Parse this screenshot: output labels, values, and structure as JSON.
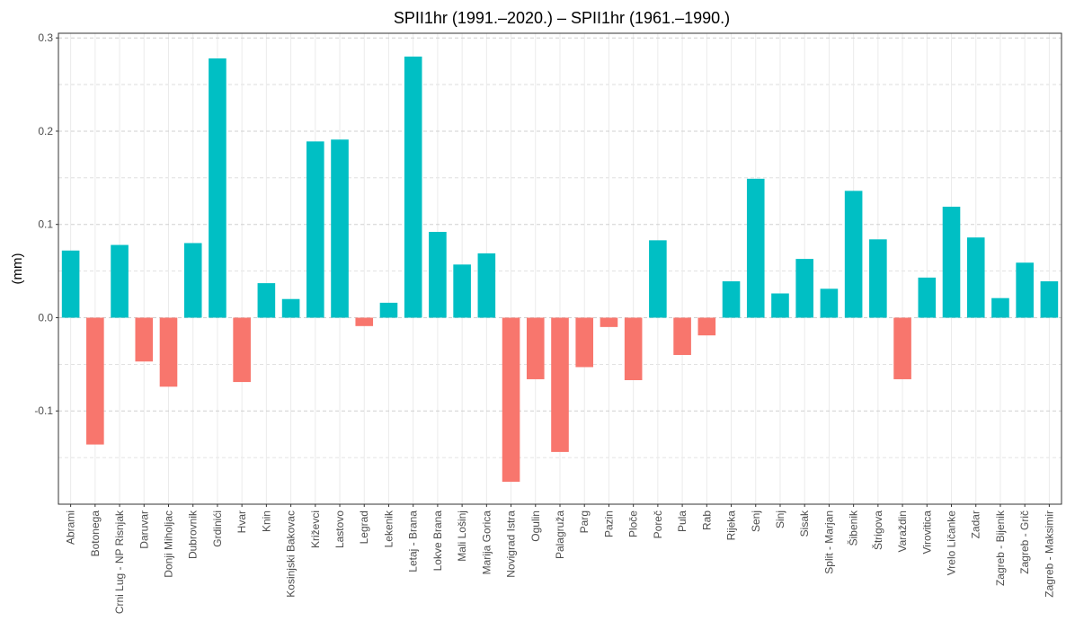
{
  "chart_data": {
    "type": "bar",
    "title": "SPII1hr (1991.–2020.) – SPII1hr (1961.–1990.)",
    "y_label": "(mm)",
    "categories": [
      "Abrami",
      "Botonega",
      "Crni Lug - NP Risnjak",
      "Daruvar",
      "Donji Miholjac",
      "Dubrovnik",
      "Grdinići",
      "Hvar",
      "Knin",
      "Kosinjski Bakovac",
      "Križevci",
      "Lastovo",
      "Legrad",
      "Lekenik",
      "Letaj - Brana",
      "Lokve Brana",
      "Mali Lošinj",
      "Marija Gorica",
      "Novigrad Istra",
      "Ogulin",
      "Palagruža",
      "Parg",
      "Pazin",
      "Ploče",
      "Poreč",
      "Pula",
      "Rab",
      "Rijeka",
      "Senj",
      "Sinj",
      "Sisak",
      "Split - Marjan",
      "Šibenik",
      "Štrigova",
      "Varaždin",
      "Virovitica",
      "Vrelo Ličanke",
      "Zadar",
      "Zagreb - Bijenik",
      "Zagreb - Grič",
      "Zagreb - Maksimir"
    ],
    "values": [
      0.072,
      -0.136,
      0.078,
      -0.047,
      -0.074,
      0.08,
      0.278,
      -0.069,
      0.037,
      0.02,
      0.189,
      0.191,
      -0.009,
      0.016,
      0.28,
      0.092,
      0.057,
      0.069,
      -0.176,
      -0.066,
      -0.144,
      -0.053,
      -0.01,
      -0.067,
      0.083,
      -0.04,
      -0.019,
      0.039,
      0.149,
      0.026,
      0.063,
      0.031,
      0.136,
      0.084,
      -0.066,
      0.043,
      0.119,
      0.086,
      0.021,
      0.059,
      0.039
    ],
    "colors": {
      "positive": "#00BFC4",
      "negative": "#F8766D"
    },
    "ylim": [
      -0.2,
      0.305
    ],
    "yticks": [
      -0.1,
      {
        "value": 0,
        "label": "0.0"
      },
      0.1,
      0.2,
      0.3
    ],
    "yminorticks": [
      -0.15,
      -0.05,
      0.05,
      0.15,
      0.25
    ],
    "grid": true
  }
}
